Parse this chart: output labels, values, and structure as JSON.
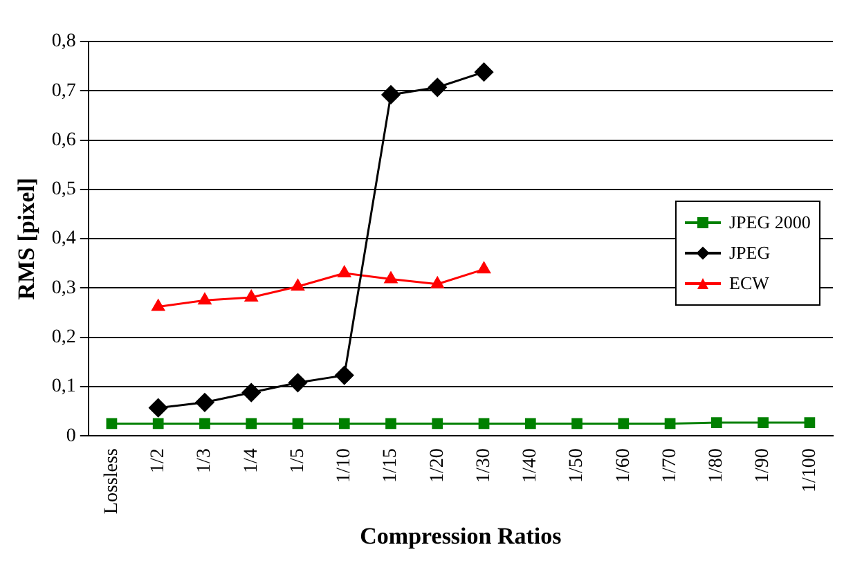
{
  "chart_data": {
    "type": "line",
    "xlabel": "Compression Ratios",
    "ylabel": "RMS [pixel]",
    "categories": [
      "Lossless",
      "1/2",
      "1/3",
      "1/4",
      "1/5",
      "1/10",
      "1/15",
      "1/20",
      "1/30",
      "1/40",
      "1/50",
      "1/60",
      "1/70",
      "1/80",
      "1/90",
      "1/100"
    ],
    "series": [
      {
        "name": "JPEG 2000",
        "color": "#008000",
        "marker": "square",
        "values": [
          0.025,
          0.025,
          0.025,
          0.025,
          0.025,
          0.025,
          0.025,
          0.025,
          0.025,
          0.025,
          0.025,
          0.025,
          0.025,
          0.027,
          0.027,
          0.027
        ]
      },
      {
        "name": "JPEG",
        "color": "#000000",
        "marker": "diamond",
        "values": [
          null,
          0.057,
          0.068,
          0.088,
          0.108,
          0.123,
          0.692,
          0.707,
          0.738,
          null,
          null,
          null,
          null,
          null,
          null,
          null
        ]
      },
      {
        "name": "ECW",
        "color": "#ff0000",
        "marker": "triangle",
        "values": [
          null,
          0.262,
          0.275,
          0.281,
          0.303,
          0.33,
          0.318,
          0.308,
          0.338,
          null,
          null,
          null,
          null,
          null,
          null,
          null
        ]
      }
    ],
    "ylim": [
      0,
      0.8
    ],
    "yticks": [
      {
        "value": 0,
        "label": "0"
      },
      {
        "value": 0.1,
        "label": "0,1"
      },
      {
        "value": 0.2,
        "label": "0,2"
      },
      {
        "value": 0.3,
        "label": "0,3"
      },
      {
        "value": 0.4,
        "label": "0,4"
      },
      {
        "value": 0.5,
        "label": "0,5"
      },
      {
        "value": 0.6,
        "label": "0,6"
      },
      {
        "value": 0.7,
        "label": "0,7"
      },
      {
        "value": 0.8,
        "label": "0,8"
      }
    ],
    "grid": "y",
    "legend": "right",
    "line_style": "solid"
  }
}
